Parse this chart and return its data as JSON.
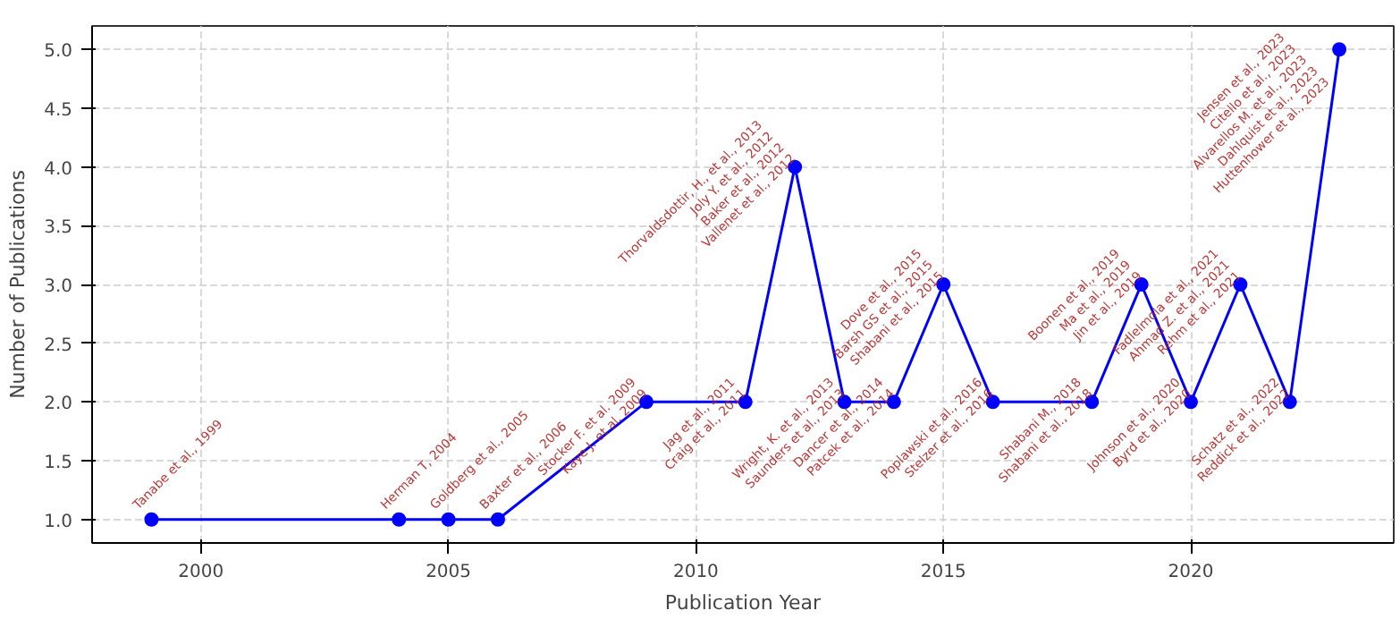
{
  "chart_data": {
    "type": "line",
    "xlabel": "Publication Year",
    "ylabel": "Number of Publications",
    "x": [
      1999,
      2004,
      2005,
      2006,
      2009,
      2011,
      2012,
      2013,
      2014,
      2015,
      2016,
      2018,
      2019,
      2020,
      2021,
      2022,
      2023
    ],
    "series": [
      {
        "color": "#0000ff",
        "values": [
          1,
          1,
          1,
          1,
          2,
          2,
          4,
          2,
          2,
          3,
          2,
          2,
          3,
          2,
          3,
          2,
          5
        ]
      }
    ],
    "xlim": [
      1997.8,
      2024.1
    ],
    "ylim": [
      0.8,
      5.2
    ],
    "xticks": [
      2000,
      2005,
      2010,
      2015,
      2020
    ],
    "yticks": [
      {
        "value": 1,
        "label": "1.0"
      },
      {
        "value": 1.5,
        "label": "1.5"
      },
      {
        "value": 2,
        "label": "2.0"
      },
      {
        "value": 2.5,
        "label": "2.5"
      },
      {
        "value": 3,
        "label": "3.0"
      },
      {
        "value": 3.5,
        "label": "3.5"
      },
      {
        "value": 4,
        "label": "4.0"
      },
      {
        "value": 4.5,
        "label": "4.5"
      },
      {
        "value": 5,
        "label": "5.0"
      }
    ],
    "grid": true,
    "marker": "circle",
    "line_style": "solid",
    "annotations": [
      {
        "text": "Tanabe et al., 1999",
        "x": 1999,
        "y": 1
      },
      {
        "text": "Herman T, 2004",
        "x": 2004,
        "y": 1
      },
      {
        "text": "Goldberg et al., 2005",
        "x": 2005,
        "y": 1
      },
      {
        "text": "Baxter et al., 2006",
        "x": 2006,
        "y": 1
      },
      {
        "text": "Stocker F. et al. 2009\nKaye J. et al. 2009",
        "x": 2009,
        "y": 2
      },
      {
        "text": "Jag et al., 2011\nCraig et al., 2011",
        "x": 2011,
        "y": 2
      },
      {
        "text": "Thorvaldsdottir, H., et al., 2013\nJoly Y. et al., 2012\nBaker et al., 2012\nVallenet et al., 2012",
        "x": 2012,
        "y": 4
      },
      {
        "text": "Wright, K. et al., 2013\nSaunders et al., 2013",
        "x": 2013,
        "y": 2
      },
      {
        "text": "Dancer et al., 2014\nPatcek et al., 2014",
        "x": 2014,
        "y": 2
      },
      {
        "text": "Dove et al., 2015\nBarsh GS et al., 2015\nShabani et al., 2015",
        "x": 2015,
        "y": 3
      },
      {
        "text": "Poplawski et al., 2016\nStelzer et al., 2016",
        "x": 2016,
        "y": 2
      },
      {
        "text": "Shabani M., 2018\nShabani et al., 2018",
        "x": 2018,
        "y": 2
      },
      {
        "text": "Boonen et al., 2019\nMa et al., 2019\nJin et al., 2019",
        "x": 2019,
        "y": 3
      },
      {
        "text": "Johnson et al., 2020\nByrd et al., 2020",
        "x": 2020,
        "y": 2
      },
      {
        "text": "Fadlelmola et al., 2021\nAhmad Z. et al., 2021\nRehm et al., 2021",
        "x": 2021,
        "y": 3
      },
      {
        "text": "Schatz et al., 2022\nReddick et al., 2022",
        "x": 2022,
        "y": 2
      },
      {
        "text": "Jensen et al., 2023\nCitello et al., 2023\nAlvarellos M. et al., 2023\nDahlquist et al., 2023\nHuttenhower et al., 2023",
        "x": 2023,
        "y": 5
      }
    ]
  }
}
